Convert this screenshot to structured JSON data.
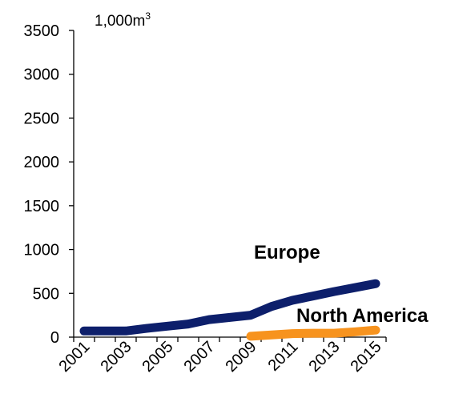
{
  "chart_data": {
    "type": "line",
    "unit_label": "1,000m",
    "unit_superscript": "3",
    "x": [
      "2001",
      "2002",
      "2003",
      "2004",
      "2005",
      "2006",
      "2007",
      "2008",
      "2009",
      "2010",
      "2011",
      "2012",
      "2013",
      "2014",
      "2015"
    ],
    "x_tick_labels": [
      "2001",
      "2003",
      "2005",
      "2007",
      "2009",
      "2011",
      "2013",
      "2015"
    ],
    "ylim": [
      0,
      3500
    ],
    "y_ticks": [
      0,
      500,
      1000,
      1500,
      2000,
      2500,
      3000,
      3500
    ],
    "grid": false,
    "series": [
      {
        "name": "Europe",
        "color": "#0d1f6b",
        "values": [
          70,
          70,
          70,
          100,
          125,
          150,
          200,
          225,
          250,
          350,
          420,
          470,
          520,
          565,
          610
        ]
      },
      {
        "name": "North America",
        "color": "#f7931e",
        "values": [
          null,
          null,
          null,
          null,
          null,
          null,
          null,
          null,
          10,
          25,
          40,
          45,
          45,
          60,
          80
        ]
      }
    ]
  }
}
